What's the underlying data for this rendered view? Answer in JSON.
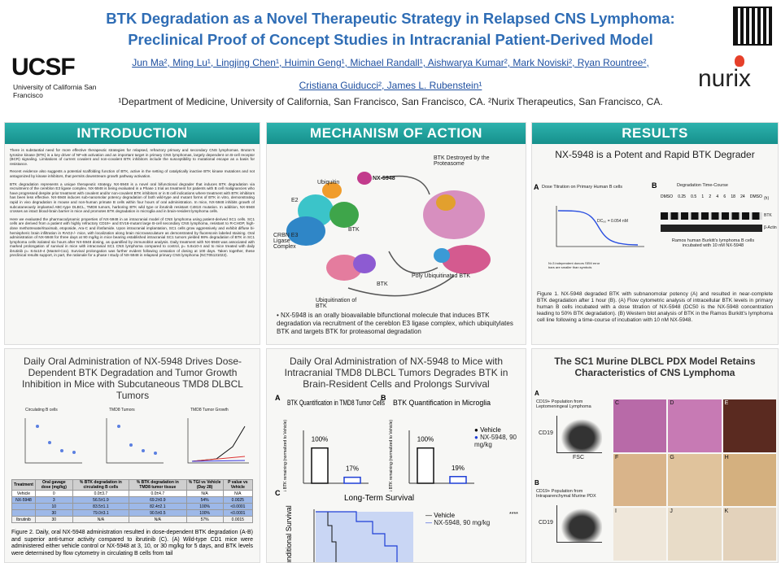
{
  "header": {
    "title_line1": "BTK Degradation as a Novel Therapeutic Strategy in Relapsed CNS Lymphoma:",
    "title_line2": "Preclinical Proof of Concept Studies in Intracranial Patient-Derived Model",
    "authors_line1": "Jun Ma², Ming Lu¹, Lingjing Chen¹, Huimin Geng¹, Michael Randall¹, Aishwarya Kumar², Mark Noviski², Ryan Rountree²,",
    "authors_line2": "Cristiana Guiducci², James L. Rubenstein¹",
    "affiliations": "¹Department of Medicine, University of California, San Francisco, San Francisco, CA. ²Nurix Therapeutics, San Francisco, CA.",
    "logo_left": "UCSF",
    "logo_left_sub": "University of California San Francisco",
    "logo_right": "nurix"
  },
  "introduction": {
    "heading": "INTRODUCTION",
    "paragraphs": [
      "There is substantial need for more effective therapeutic strategies for relapsed, refractory primary and secondary CNS lymphomas. Bruton's tyrosine kinase (BTK) is a key driver of NF-κB activation and an important target in primary CNS lymphomas, largely dependent on B-cell receptor (BCR) signaling. Limitations of current covalent and non-covalent BTK inhibitors include the susceptibility to mutational escape as a basis for resistance.",
      "Recent evidence also suggests a potential scaffolding function of BTK, active in the setting of catalytically inactive BTK kinase mutations and not antagonized by kinase inhibitors, that permits downstream growth pathway activation.",
      "BTK degradation represents a unique therapeutic strategy. NX-5948 is a novel oral bifunctional degrader that induces BTK degradation via recruitment of the cereblon E3 ligase complex. NX-5948 is being evaluated in a Phase 1 trial as treatment for patients with B cell malignancies who have progressed despite prior treatment with covalent and/or non-covalent BTK inhibitors or in B cell indications where treatment with BTK inhibitors has been less effective. NX-5948 induces sub-nanomolar potency degradation of both wild-type and mutant forms of BTK in vitro, demonstrating rapid in vivo degradation in mouse and non-human primate B cells within four hours of oral administration. In mice, NX-5948 inhibits growth of subcutaneously implanted ABC-type DLBCL, TMD8 tumors, harboring BTK wild type or ibrutinib resistant C481S mutation. In addition, NX-5948 crosses an intact blood-brain barrier in mice and promotes BTK degradation in microglia and in brain-resident lymphoma cells.",
      "Here we evaluated the pharmacodynamic properties of NX-5948 in an intracranial model of CNS lymphoma using patient-derived SC1 cells. SC1 cells are derived from a patient with highly refractory CD19+ and EV16-mutant large B-cell secondary CNS lymphoma, resistant to R-CHOP, high-dose methotrexate/rituximab, etoposide, Ara-C and ifosfamide. Upon intracranial implantation, SC1 cells grow aggressively and exhibit diffuse bi-hemispheric brain infiltration in RAG2-/- mice, with localization along brain microvasculature as demonstrated by fluorescein labeled staining. Oral administration of NX-5948 for three days at 90 mg/kg in mice bearing established intracranial SC1 tumors yielded 98% degradation of BTK in SC1 lymphoma cells isolated six hours after NX-5948 dosing, as quantified by immunoblot analysis. Daily treatment with NX-5948 was associated with marked prolongation of survival in mice with intracranial SC1 CNS lymphoma compared to control, p= 5.6x10-4 and to mice treated with daily ibrutinib p= 8.6x10-4 (Mantel-Cox). Survival prolongation was further evident following cessation of dosing at 100 days. Taken together, these preclinical results support, in part, the rationale for a phase I study of NX-5948 in relapsed primary CNS lymphoma (NCT05131022)."
    ]
  },
  "mechanism": {
    "heading": "MECHANISM OF ACTION",
    "labels": [
      "NX-5948",
      "E2",
      "Ubiquitin",
      "BTK",
      "CRBN E3 Ligase Complex",
      "BTK Destroyed by the Proteasome",
      "BTK",
      "Ubiquitination of BTK",
      "Poly Ubiquitinated BTK"
    ],
    "bullet": "NX-5948 is an orally bioavailable bifunctional molecule that induces BTK degradation via recruitment of the cereblon E3 ligase complex, which ubiquitylates BTK and targets BTK for proteasomal degradation"
  },
  "results": {
    "heading": "RESULTS",
    "subtitle": "NX-5948 is a Potent and Rapid BTK Degrader",
    "panel_a": "A",
    "panel_a_title": "Dose Titration on Primary Human B cells",
    "dc50": "DC₅₀ = 0.054 nM",
    "panel_a_note": "N=3 independent donors SEM error bars are smaller than symbols",
    "panel_b": "B",
    "panel_b_title": "Degradation Time-Course",
    "timepoints": [
      "DMSO",
      "0.25",
      "0.5",
      "1",
      "2",
      "4",
      "6",
      "18",
      "24",
      "DMSO"
    ],
    "time_unit": "(h)",
    "blot_labels": [
      "BTK",
      "β-Actin"
    ],
    "blot_caption": "Ramos human Burkitt's lymphoma B cells incubated with 10 nM NX-5948",
    "caption": "Figure 1. NX-5948 degraded BTK with subnanomolar potency (A) and resulted in near-complete BTK degradation after 1 hour (B). (A) Flow cytometric analysis of intracellular BTK levels in primary human B cells incubated with a dose titration of NX-5948 (DC50 is the NX-5948 concentration leading to 50% BTK degradation). (B) Western blot analysis of BTK in the Ramos Burkitt's lymphoma cell line following a time-course of incubation with 10 nM NX-5948."
  },
  "tumor": {
    "title": "Daily Oral Administration of NX-5948 Drives Dose-Dependent BTK Degradation and Tumor Growth Inhibition in Mice with Subcutaneous TMD8 DLBCL Tumors",
    "chart_titles": [
      "Circulating B cells",
      "TMD8 Tumors",
      "TMD8 Tumor Growth"
    ],
    "table": {
      "header": [
        "Treatment",
        "Oral gavage dose (mg/kg)",
        "% BTK degradation in circulating B cells",
        "% BTK degradation in TMD8 tumor tissue",
        "% TGI vs Vehicle (Day 28)",
        "P value vs Vehicle"
      ],
      "rows": [
        [
          "Vehicle",
          "0",
          "0.0±3.7",
          "0.0±4.7",
          "N/A",
          "N/A"
        ],
        [
          "NX-5948",
          "3",
          "56.5±1.9",
          "69.2±0.9",
          "54%",
          "0.0025"
        ],
        [
          "",
          "10",
          "83.5±1.1",
          "82.4±2.1",
          "100%",
          "<0.0001"
        ],
        [
          "",
          "30",
          "79.0±3.1",
          "90.5±0.5",
          "100%",
          "<0.0001"
        ],
        [
          "Ibrutinib",
          "30",
          "N/A",
          "N/A",
          "57%",
          "0.0015"
        ]
      ]
    },
    "caption": "Figure 2. Daily, oral NX-5948 administration resulted in dose-dependent BTK degradation (A-B) and superior anti-tumor activity compared to ibrutinib (C). (A) Wild-type CD1 mice were administered either vehicle control or NX-5948 at 3, 10, or 30 mg/kg for 5 days, and BTK levels were determined by flow cytometry in circulating B cells from tail"
  },
  "brain": {
    "title": "Daily Oral Administration of NX-5948 to Mice with Intracranial TMD8 DLBCL Tumors Degrades BTK in Brain-Resident Cells and Prolongs Survival",
    "legend": [
      "Vehicle",
      "NX-5948, 90 mg/kg"
    ],
    "survival_panel": "C",
    "survival_title": "Long-Term Survival",
    "survival_ylabel": "Conditional Survival",
    "significance": "****",
    "charts": [
      {
        "type": "bar",
        "panel": "A",
        "title": "BTK Quantification in TMD8 Tumor Cells",
        "ylabel": "% BTK remaining (normalized to Vehicle)",
        "categories": [
          "Vehicle",
          "NX-5948, 90 mg/kg"
        ],
        "values": [
          100,
          17
        ],
        "value_labels": [
          "100%",
          "17%"
        ],
        "colors": [
          "#111111",
          "#1f3fd6"
        ],
        "ylim": [
          0,
          150
        ]
      },
      {
        "type": "bar",
        "panel": "B",
        "title": "BTK Quantification in Microglia",
        "ylabel": "% BTK remaining (normalized to Vehicle)",
        "categories": [
          "Vehicle",
          "NX-5948, 90 mg/kg"
        ],
        "values": [
          100,
          19
        ],
        "value_labels": [
          "100%",
          "19%"
        ],
        "colors": [
          "#111111",
          "#1f3fd6"
        ],
        "ylim": [
          0,
          150
        ]
      }
    ]
  },
  "pdx": {
    "title": "The SC1 Murine DLBCL PDX Model Retains Characteristics of CNS Lymphoma",
    "panel_a": "A",
    "panel_a_title": "CD19+ Population from Leptomeningeal Lymphoma",
    "panel_b": "B",
    "panel_b_title": "CD19+ Population from Intraparenchymal Murine PDX",
    "y_axis": "CD19",
    "x_axis": "FSC",
    "tile_labels": [
      "C",
      "D",
      "E",
      "F",
      "G",
      "H",
      "I",
      "J",
      "K"
    ]
  }
}
